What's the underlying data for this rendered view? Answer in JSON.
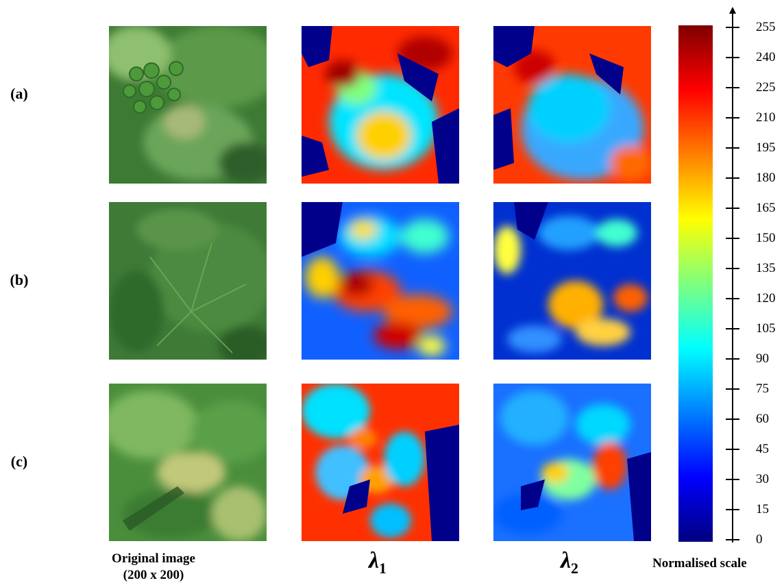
{
  "rows": [
    {
      "label": "(a)"
    },
    {
      "label": "(b)"
    },
    {
      "label": "(c)"
    }
  ],
  "columns": {
    "original": {
      "line1": "Original image",
      "line2": "(200 x 200)"
    },
    "lambda1": {
      "symbol": "λ",
      "sub": "1"
    },
    "lambda2": {
      "symbol": "λ",
      "sub": "2"
    }
  },
  "scale": {
    "title": "Normalised scale",
    "ticks": [
      "255",
      "240",
      "225",
      "210",
      "195",
      "180",
      "165",
      "150",
      "135",
      "120",
      "105",
      "90",
      "75",
      "60",
      "45",
      "30",
      "15",
      "0"
    ]
  },
  "colors": {
    "leaf_dark": "#2f6a2a",
    "leaf_mid": "#4f8f3f",
    "leaf_light": "#8cc06a",
    "cmap_low": "#00007f",
    "cmap_high": "#7f0000"
  }
}
